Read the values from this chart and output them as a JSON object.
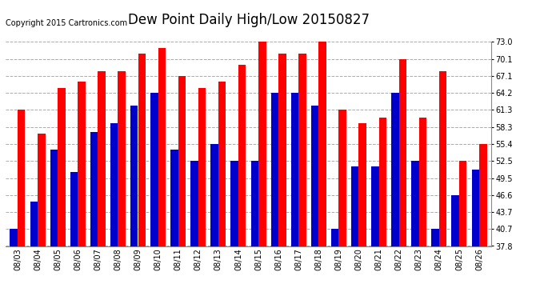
{
  "title": "Dew Point Daily High/Low 20150827",
  "copyright": "Copyright 2015 Cartronics.com",
  "categories": [
    "08/03",
    "08/04",
    "08/05",
    "08/06",
    "08/07",
    "08/08",
    "08/09",
    "08/10",
    "08/11",
    "08/12",
    "08/13",
    "08/14",
    "08/15",
    "08/16",
    "08/17",
    "08/18",
    "08/19",
    "08/20",
    "08/21",
    "08/22",
    "08/23",
    "08/24",
    "08/25",
    "08/26"
  ],
  "high": [
    61.3,
    57.2,
    65.0,
    66.2,
    68.0,
    68.0,
    71.0,
    72.0,
    67.1,
    65.0,
    66.2,
    69.1,
    73.0,
    71.0,
    71.0,
    73.0,
    61.3,
    59.0,
    60.0,
    70.1,
    60.0,
    68.0,
    52.5,
    55.4
  ],
  "low": [
    40.7,
    45.5,
    54.5,
    50.5,
    57.5,
    59.0,
    62.0,
    64.2,
    54.5,
    52.5,
    55.4,
    52.5,
    52.5,
    64.2,
    64.2,
    62.0,
    40.7,
    51.5,
    51.5,
    64.2,
    52.5,
    40.7,
    46.6,
    51.0
  ],
  "high_color": "#FF0000",
  "low_color": "#0000CD",
  "bg_color": "#FFFFFF",
  "plot_bg_color": "#FFFFFF",
  "grid_color": "#AAAAAA",
  "yticks": [
    37.8,
    40.7,
    43.7,
    46.6,
    49.5,
    52.5,
    55.4,
    58.3,
    61.3,
    64.2,
    67.1,
    70.1,
    73.0
  ],
  "ylim": [
    37.8,
    73.0
  ],
  "title_fontsize": 12,
  "tick_fontsize": 7,
  "copyright_fontsize": 7
}
